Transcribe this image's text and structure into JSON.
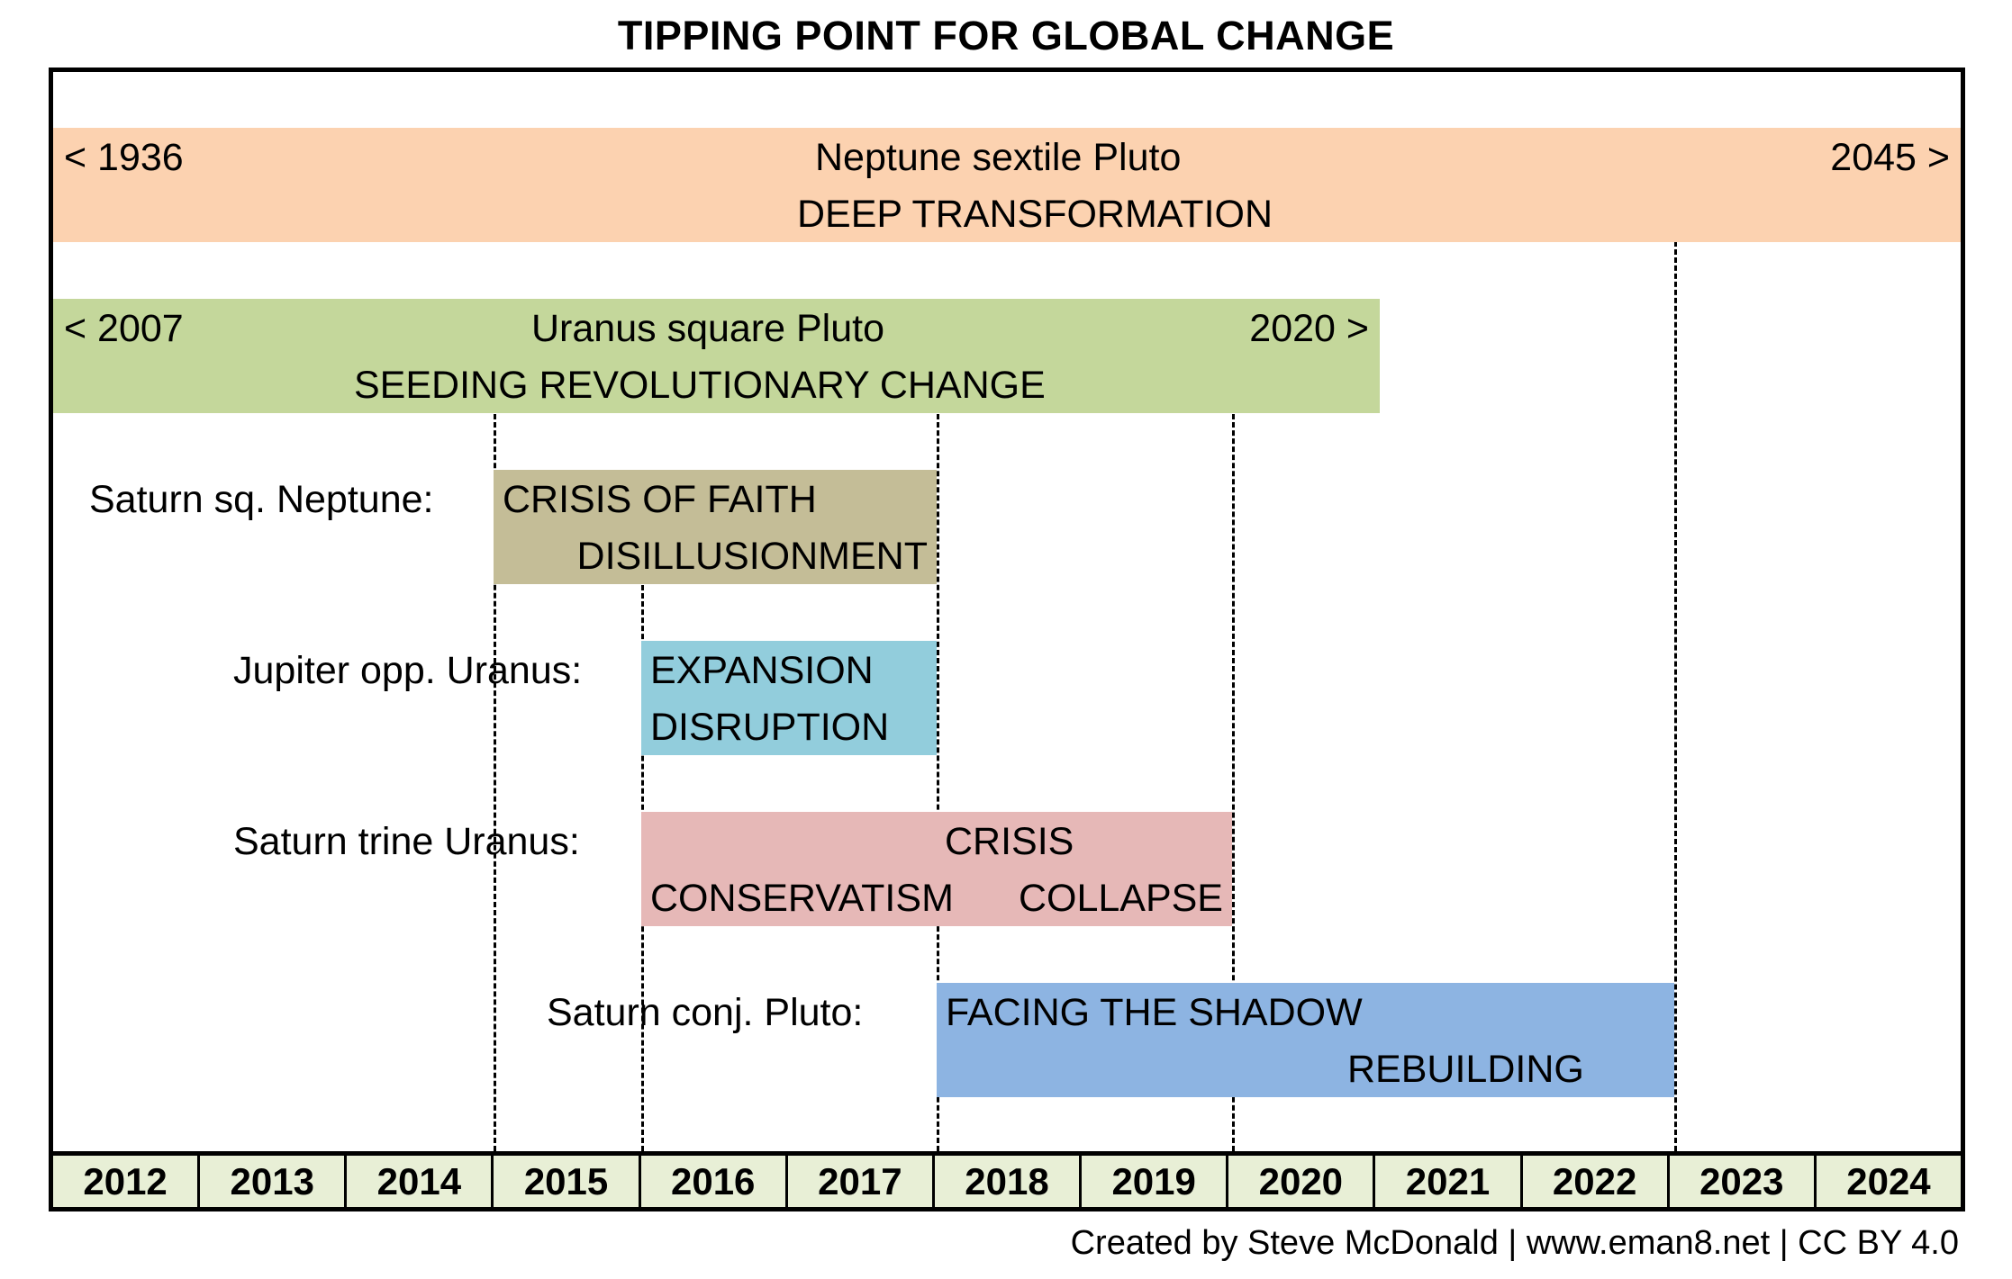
{
  "title": "TIPPING POINT FOR GLOBAL CHANGE",
  "colors": {
    "neptune_pluto": "#fcd2b0",
    "uranus_pluto": "#c4d79b",
    "saturn_neptune": "#c4bd97",
    "jupiter_uranus": "#92cddc",
    "saturn_uranus": "#e6b8b7",
    "saturn_pluto": "#8db4e2",
    "year_row": "#e8efd6"
  },
  "bands": {
    "neptune_pluto": {
      "start": "< 1936",
      "name": "Neptune sextile Pluto",
      "theme": "DEEP TRANSFORMATION",
      "end": "2045 >"
    },
    "uranus_pluto": {
      "start": "< 2007",
      "name": "Uranus square Pluto",
      "theme": "SEEDING REVOLUTIONARY CHANGE",
      "end": "2020 >"
    },
    "saturn_neptune": {
      "label": "Saturn sq. Neptune:",
      "line1": "CRISIS OF FAITH",
      "line2": "DISILLUSIONMENT"
    },
    "jupiter_uranus": {
      "label": "Jupiter opp. Uranus:",
      "line1": "EXPANSION",
      "line2": "DISRUPTION"
    },
    "saturn_uranus": {
      "label": "Saturn trine Uranus:",
      "line1": "CRISIS",
      "line2a": "CONSERVATISM",
      "line2b": "COLLAPSE"
    },
    "saturn_pluto": {
      "label": "Saturn conj. Pluto:",
      "line1": "FACING THE SHADOW",
      "line2": "REBUILDING"
    }
  },
  "years": [
    "2012",
    "2013",
    "2014",
    "2015",
    "2016",
    "2017",
    "2018",
    "2019",
    "2020",
    "2021",
    "2022",
    "2023",
    "2024"
  ],
  "credit": "Created by Steve McDonald | www.eman8.net | CC BY 4.0"
}
